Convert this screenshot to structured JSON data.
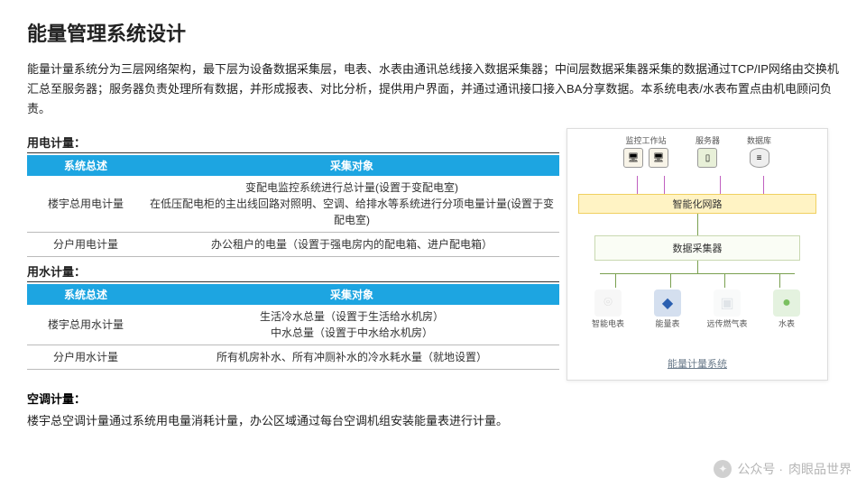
{
  "title": "能量管理系统设计",
  "intro": "能量计量系统分为三层网络架构，最下层为设备数据采集层，电表、水表由通讯总线接入数据采集器；中间层数据采集器采集的数据通过TCP/IP网络由交换机汇总至服务器；服务器负责处理所有数据，并形成报表、对比分析，提供用户界面，并通过通讯接口接入BA分享数据。本系统电表/水表布置点由机电顾问负责。",
  "sections": {
    "electricity": {
      "label": "用电计量：",
      "columns": [
        "系统总述",
        "采集对象"
      ],
      "rows": [
        {
          "c1": "楼宇总用电计量",
          "c2": "变配电监控系统进行总计量(设置于变配电室)\n在低压配电柜的主出线回路对照明、空调、给排水等系统进行分项电量计量(设置于变配电室)"
        },
        {
          "c1": "分户用电计量",
          "c2": "办公租户的电量（设置于强电房内的配电箱、进户配电箱）"
        }
      ]
    },
    "water": {
      "label": "用水计量：",
      "columns": [
        "系统总述",
        "采集对象"
      ],
      "rows": [
        {
          "c1": "楼宇总用水计量",
          "c2": "生活冷水总量（设置于生活给水机房）\n中水总量（设置于中水给水机房）"
        },
        {
          "c1": "分户用水计量",
          "c2": "所有机房补水、所有冲厕补水的冷水耗水量（就地设置）"
        }
      ]
    },
    "ac": {
      "label": "空调计量：",
      "text": "楼宇总空调计量通过系统用电量消耗计量，办公区域通过每台空调机组安装能量表进行计量。"
    }
  },
  "diagram": {
    "caption": "能量计量系统",
    "top_groups": [
      {
        "label": "监控工作站",
        "icons": [
          "ws",
          "ws"
        ]
      },
      {
        "label": "服务器",
        "icons": [
          "srv"
        ]
      },
      {
        "label": "数据库",
        "icons": [
          "db"
        ]
      }
    ],
    "band1": "智能化网路",
    "band2": "数据采集器",
    "meters": [
      {
        "label": "智能电表",
        "color": "#d8d8d8",
        "glyph": "⌾"
      },
      {
        "label": "能量表",
        "color": "#2a5fb0",
        "glyph": "◆"
      },
      {
        "label": "远传燃气表",
        "color": "#e0e4e8",
        "glyph": "▣"
      },
      {
        "label": "水表",
        "color": "#7ac060",
        "glyph": "●"
      }
    ],
    "colors": {
      "header_bg": "#1da5e1",
      "band1_bg": "#fff3c4",
      "band2_border": "#c8d8b0",
      "conn_purple": "#c060c0",
      "conn_green": "#7aa050"
    }
  },
  "watermark": {
    "prefix": "公众号 ·",
    "name": "肉眼品世界"
  }
}
